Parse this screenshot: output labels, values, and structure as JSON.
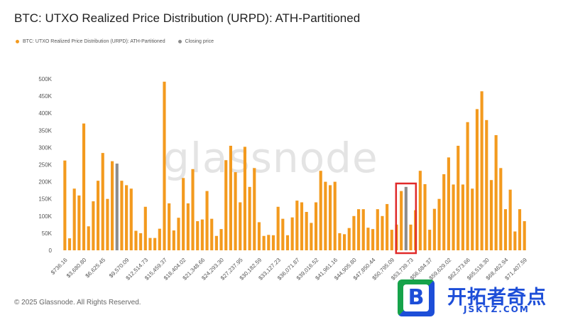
{
  "title": "BTC: UTXO Realized Price Distribution (URPD): ATH-Partitioned",
  "legend": {
    "series_label": "BTC: UTXO Realized Price Distribution (URPD): ATH-Partitioned",
    "closing_label": "Closing price"
  },
  "watermark": "glassnode",
  "footer": "© 2025 Glassnode. All Rights Reserved.",
  "logo": {
    "glyph": "B",
    "cn": "开拓者奇点",
    "en": "JSKTZ.COM"
  },
  "colors": {
    "bar": "#f39a1e",
    "closing": "#8c8c8c",
    "highlight": "#e02a2a",
    "text": "#555555"
  },
  "chart_data": {
    "type": "bar",
    "title": "BTC: UTXO Realized Price Distribution (URPD): ATH-Partitioned",
    "xlabel": "",
    "ylabel": "",
    "ylim": [
      0,
      500000
    ],
    "y_ticks": [
      "0",
      "50K",
      "100K",
      "150K",
      "200K",
      "250K",
      "300K",
      "350K",
      "400K",
      "450K",
      "500K"
    ],
    "x_tick_labels": [
      "$736.16",
      "$3,680.80",
      "$6,625.45",
      "$9,570.09",
      "$12,514.73",
      "$15,459.37",
      "$18,404.02",
      "$21,348.66",
      "$24,293.30",
      "$27,237.95",
      "$30,182.59",
      "$33,127.23",
      "$36,071.87",
      "$39,016.52",
      "$41,961.16",
      "$44,905.80",
      "$47,850.44",
      "$50,795.09",
      "$53,739.73",
      "$56,684.37",
      "$59,629.02",
      "$62,573.66",
      "$65,518.30",
      "$68,462.94",
      "$71,407.59"
    ],
    "series": [
      {
        "name": "BTC: UTXO Realized Price Distribution (URPD): ATH-Partitioned",
        "values": [
          262000,
          35000,
          180000,
          160000,
          370000,
          70000,
          143000,
          203000,
          284000,
          150000,
          260000,
          0,
          203000,
          190000,
          180000,
          57000,
          50000,
          127000,
          36000,
          36000,
          63000,
          492000,
          137000,
          58000,
          95000,
          211000,
          137000,
          237000,
          85000,
          90000,
          173000,
          92000,
          42000,
          62000,
          263000,
          305000,
          228000,
          140000,
          302000,
          185000,
          240000,
          82000,
          42000,
          45000,
          44000,
          127000,
          92000,
          44000,
          96000,
          145000,
          140000,
          112000,
          80000,
          140000,
          232000,
          200000,
          190000,
          200000,
          50000,
          47000,
          65000,
          100000,
          120000,
          120000,
          66000,
          62000,
          120000,
          100000,
          135000,
          60000,
          75000,
          173000,
          0,
          75000,
          117000,
          232000,
          193000,
          60000,
          121000,
          150000,
          222000,
          271000,
          192000,
          305000,
          192000,
          374000,
          180000,
          412000,
          464000,
          380000,
          205000,
          336000,
          240000,
          120000,
          177000,
          55000,
          120000,
          85000
        ]
      },
      {
        "name": "Closing price",
        "values": [
          0,
          0,
          0,
          0,
          0,
          0,
          0,
          0,
          0,
          0,
          0,
          253000,
          0,
          0,
          0,
          0,
          0,
          0,
          0,
          0,
          0,
          0,
          0,
          0,
          0,
          0,
          0,
          0,
          0,
          0,
          0,
          0,
          0,
          0,
          0,
          0,
          0,
          0,
          0,
          0,
          0,
          0,
          0,
          0,
          0,
          0,
          0,
          0,
          0,
          0,
          0,
          0,
          0,
          0,
          0,
          0,
          0,
          0,
          0,
          0,
          0,
          0,
          0,
          0,
          0,
          0,
          0,
          0,
          0,
          0,
          0,
          0,
          185000,
          0,
          0,
          0,
          0,
          0,
          0,
          0,
          0,
          0,
          0,
          0,
          0,
          0,
          0,
          0,
          0,
          0,
          0,
          0,
          0,
          0,
          0,
          0,
          0,
          0
        ]
      }
    ],
    "highlight_bins": [
      71,
      72,
      73
    ],
    "grid": false,
    "legend_position": "top-left"
  }
}
